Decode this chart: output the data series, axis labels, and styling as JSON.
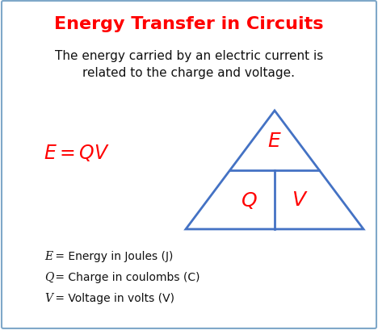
{
  "title": "Energy Transfer in Circuits",
  "title_color": "#FF0000",
  "title_fontsize": 16,
  "subtitle": "The energy carried by an electric current is\nrelated to the charge and voltage.",
  "subtitle_color": "#111111",
  "subtitle_fontsize": 11,
  "formula": "$E = QV$",
  "formula_color": "#FF0000",
  "formula_fontsize": 17,
  "triangle_color": "#4472C4",
  "triangle_linewidth": 2.0,
  "label_color": "#FF0000",
  "label_fontsize": 16,
  "legend_lines": [
    "E = Energy in Joules (J)",
    "Q = Charge in coulombs (C)",
    "V = Voltage in volts (V)"
  ],
  "legend_color": "#111111",
  "legend_fontsize": 10,
  "border_color": "#7FA8C9",
  "background_color": "#FFFFFF",
  "fig_width": 4.68,
  "fig_height": 4.1
}
